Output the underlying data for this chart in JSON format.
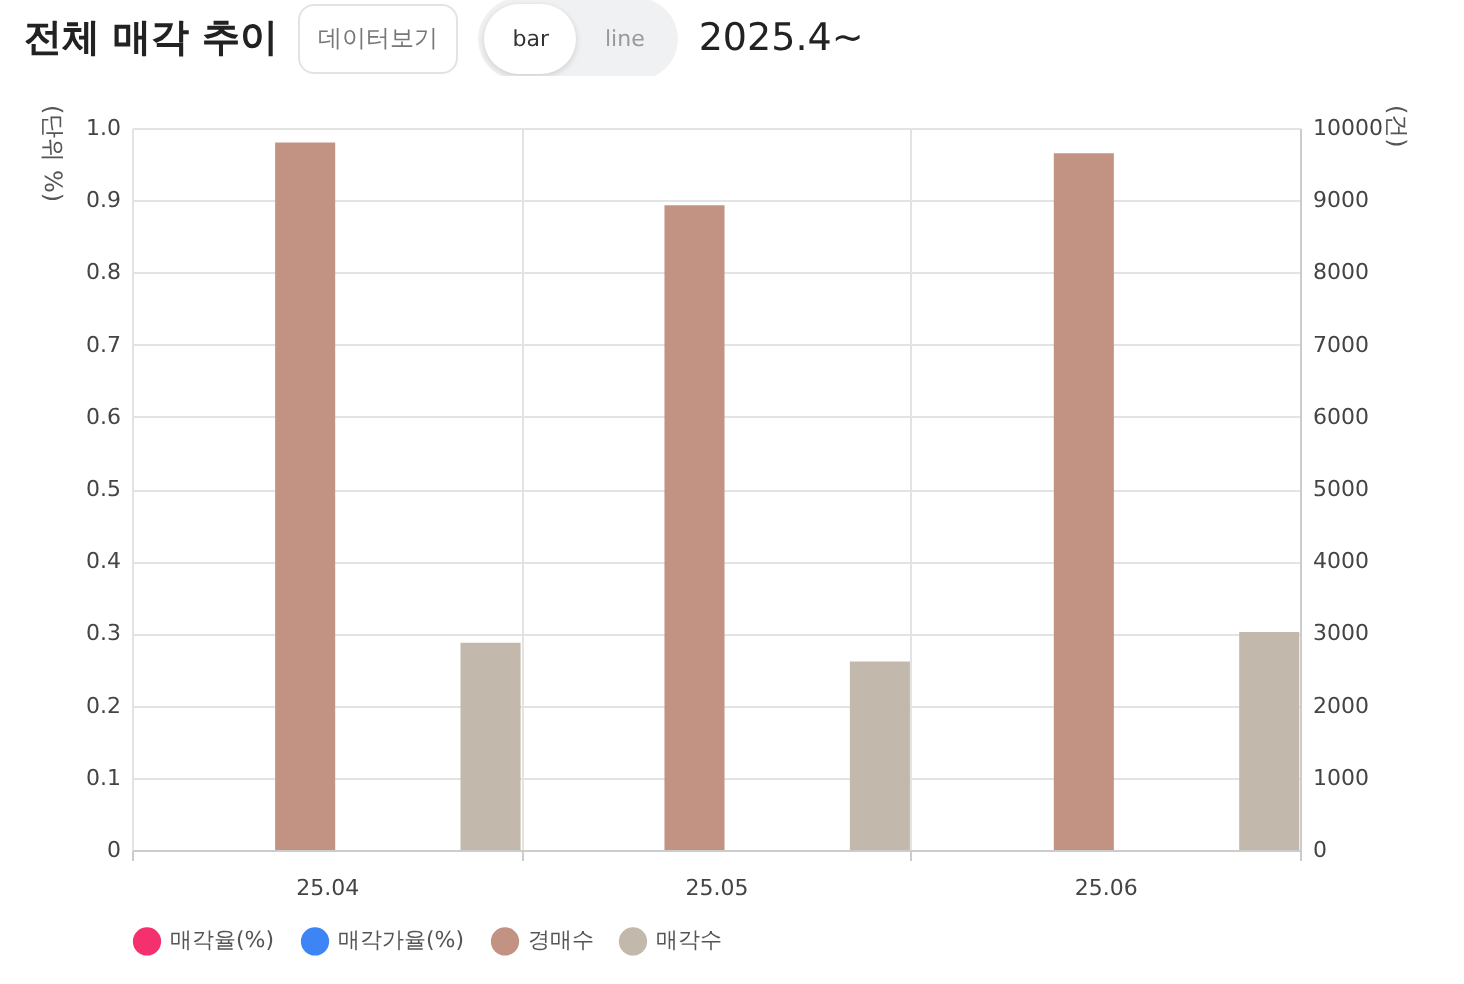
{
  "chart_data": {
    "type": "bar",
    "title": "전체 매각 추이",
    "subtitle": "2025.4~",
    "annotations": [
      "데이터보기",
      "bar",
      "line"
    ],
    "ylabel": "(단위 %)",
    "y2label": "(건)",
    "categories": [
      "25.04",
      "25.05",
      "25.06"
    ],
    "series": [
      {
        "name": "매각율(%)",
        "type": "line",
        "color": "#f5306f",
        "values": [
          null,
          null,
          null
        ]
      },
      {
        "name": "매각가율(%)",
        "type": "line",
        "color": "#3d84f5",
        "values": [
          null,
          null,
          null
        ]
      },
      {
        "name": "경매수",
        "color": "#c29382",
        "axis": "y2",
        "values": [
          9800,
          8930,
          9650
        ]
      },
      {
        "name": "매각수",
        "color": "#c2b8ab",
        "axis": "y2",
        "values": [
          2870,
          2610,
          3020
        ]
      }
    ],
    "ylim": [
      0,
      1
    ],
    "yticks": [
      0,
      0.1,
      0.2,
      0.3,
      0.4,
      0.5,
      0.6,
      0.7,
      0.8,
      0.9,
      {
        "value": 1,
        "label": "1.0"
      }
    ],
    "y2lim": [
      0,
      10000
    ],
    "y2ticks": [
      0,
      1000,
      2000,
      3000,
      4000,
      5000,
      6000,
      7000,
      8000,
      9000,
      10000
    ],
    "grid": true,
    "legend": "bottom"
  }
}
